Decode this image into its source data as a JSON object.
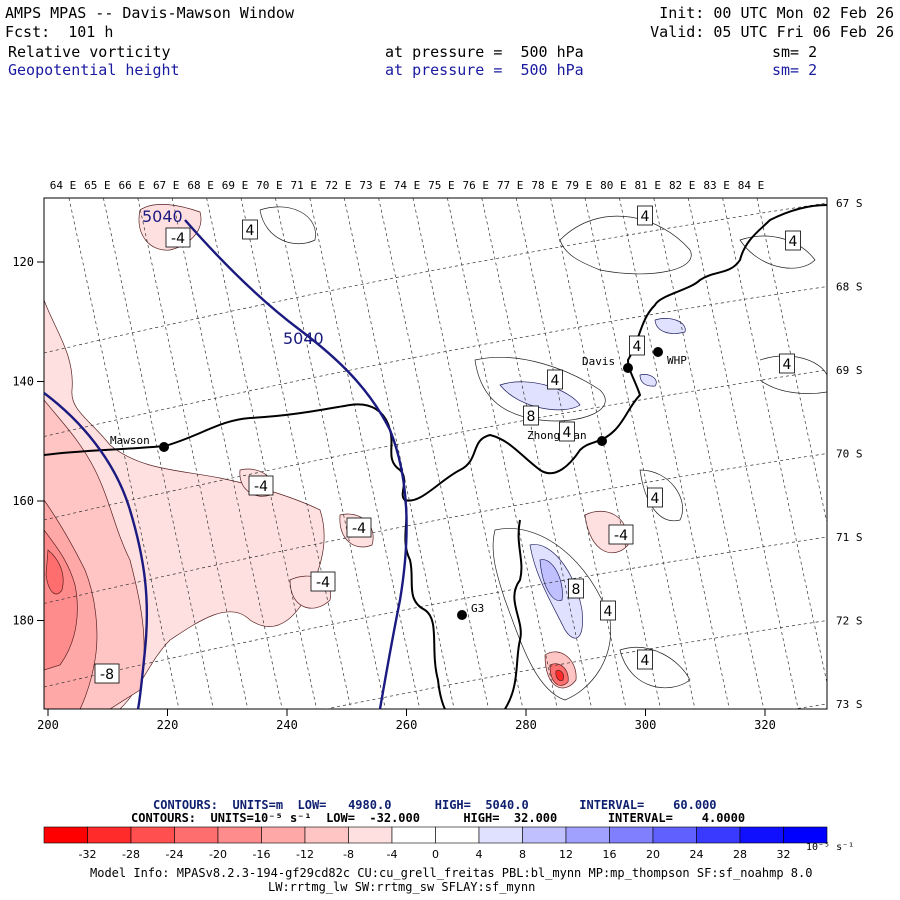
{
  "header": {
    "title": "AMPS MPAS -- Davis-Mawson Window",
    "init": "Init: 00 UTC Mon 02 Feb 26",
    "fcst": "Fcst:  101 h",
    "valid": "Valid: 05 UTC Fri 06 Feb 26",
    "field1": {
      "name": "Relative vorticity",
      "level": "at pressure =  500 hPa",
      "sm": "sm= 2"
    },
    "field2": {
      "name": "Geopotential height",
      "level": "at pressure =  500 hPa",
      "sm": "sm= 2"
    }
  },
  "axes": {
    "lon_top": [
      "64 E",
      "65 E",
      "66 E",
      "67 E",
      "68 E",
      "69 E",
      "70 E",
      "71 E",
      "72 E",
      "73 E",
      "74 E",
      "75 E",
      "76 E",
      "77 E",
      "78 E",
      "79 E",
      "80 E",
      "81 E",
      "82 E",
      "83 E",
      "84 E"
    ],
    "lat_right": [
      "67 S",
      "68 S",
      "69 S",
      "70 S",
      "71 S",
      "72 S",
      "73 S"
    ],
    "x_ticks": [
      "200",
      "220",
      "240",
      "260",
      "280",
      "300",
      "320"
    ],
    "y_ticks": [
      "120",
      "140",
      "160",
      "180"
    ]
  },
  "stations": [
    {
      "name": "Mawson"
    },
    {
      "name": "Davis"
    },
    {
      "name": "WHP"
    },
    {
      "name": "Zhongshan"
    },
    {
      "name": "G3"
    }
  ],
  "contour_labels": {
    "height": [
      "5040",
      "5040"
    ],
    "vorticity": [
      "-4",
      "4",
      "4",
      "4",
      "4",
      "4",
      "4",
      "4",
      "8",
      "4",
      "-4",
      "-4",
      "-4",
      "4",
      "-4",
      "-4",
      "8",
      "4",
      "4",
      "-8"
    ]
  },
  "legend": {
    "line1": "CONTOURS:  UNITS=m  LOW=   4980.0      HIGH=  5040.0       INTERVAL=    60.000",
    "line2": "CONTOURS:  UNITS=10⁻⁵ s⁻¹  LOW=  -32.000      HIGH=  32.000       INTERVAL=    4.0000",
    "colorbar_labels": [
      "-32",
      "-28",
      "-24",
      "-20",
      "-16",
      "-12",
      "-8",
      "-4",
      "0",
      "4",
      "8",
      "12",
      "16",
      "20",
      "24",
      "28",
      "32"
    ],
    "colorbar_units": "10⁻⁵ s⁻¹",
    "colors": [
      "#ff0000",
      "#ff2a2a",
      "#ff4f4f",
      "#ff6e6e",
      "#ff8c8c",
      "#ffa8a8",
      "#ffc4c4",
      "#ffe0e0",
      "#ffffff",
      "#ffffff",
      "#e0e0ff",
      "#c0c0ff",
      "#a0a0ff",
      "#8080ff",
      "#6060ff",
      "#3a3aff",
      "#1010ff"
    ]
  },
  "model_info": {
    "line1": "Model Info: MPASv8.2.3-194-gf29cd82c CU:cu_grell_freitas PBL:bl_mynn MP:mp_thompson SF:sf_noahmp 8.0",
    "line2": "LW:rrtmg_lw SW:rrtmg_sw SFLAY:sf_mynn"
  }
}
